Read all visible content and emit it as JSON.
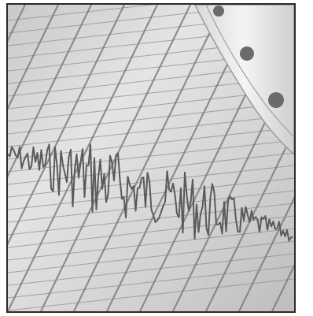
{
  "photo": {
    "subject": "seismograph-paper-trace",
    "colors": {
      "paper": "#dcdcdc",
      "grid": "#8a8a8a",
      "trace": "#555555",
      "drum": "#eeeeee",
      "holes": "#6b6b6b",
      "border": "#2a2a2a"
    }
  }
}
